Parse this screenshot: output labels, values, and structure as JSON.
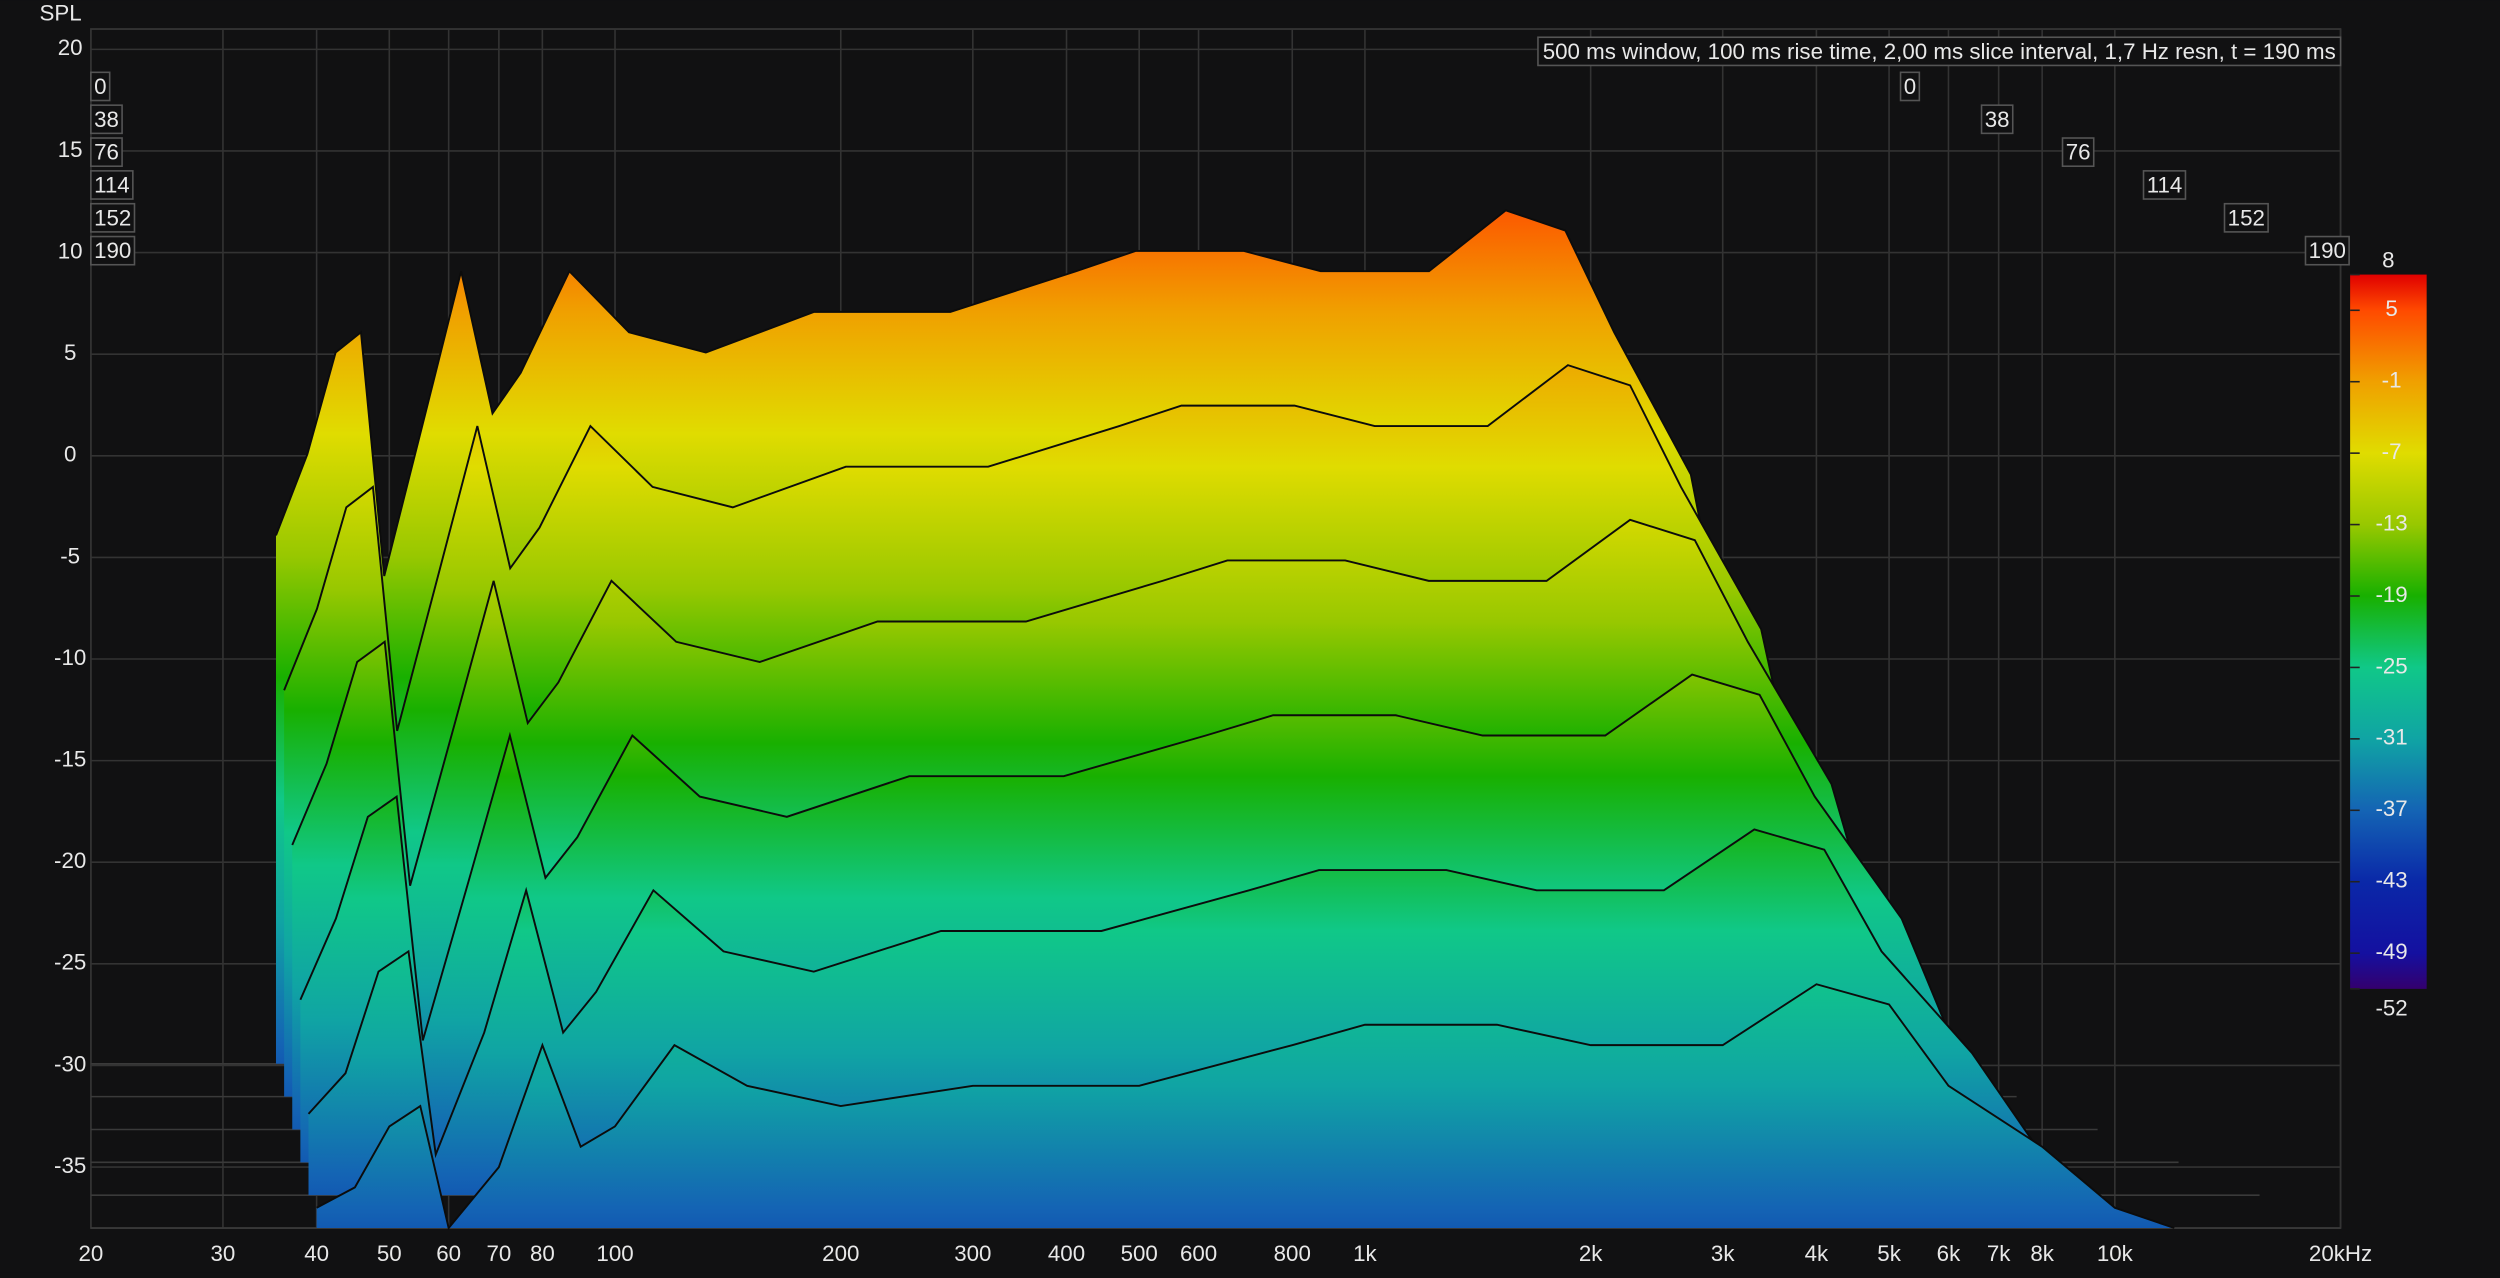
{
  "chart_data": {
    "type": "waterfall",
    "ylabel": "SPL",
    "annotation": "500 ms window, 100 ms rise time, 2,00 ms slice interval, 1,7 Hz resn, t = 190 ms",
    "xscale": "log",
    "xlim": [
      20,
      20000
    ],
    "xticks": [
      20,
      30,
      40,
      50,
      60,
      70,
      80,
      100,
      200,
      300,
      400,
      500,
      600,
      800,
      {
        "value": 1000,
        "label": "1k"
      },
      {
        "value": 2000,
        "label": "2k"
      },
      {
        "value": 3000,
        "label": "3k"
      },
      {
        "value": 4000,
        "label": "4k"
      },
      {
        "value": 5000,
        "label": "5k"
      },
      {
        "value": 6000,
        "label": "6k"
      },
      {
        "value": 7000,
        "label": "7k"
      },
      {
        "value": 8000,
        "label": "8k"
      },
      {
        "value": 10000,
        "label": "10k"
      },
      {
        "value": 20000,
        "label": "20kHz"
      }
    ],
    "ylim": [
      -38,
      21
    ],
    "yticks": [
      20,
      15,
      10,
      5,
      0,
      -5,
      -10,
      -15,
      -20,
      -25,
      -30,
      -35
    ],
    "zlim": [
      0,
      190
    ],
    "zticks": [
      0,
      38,
      76,
      114,
      152,
      190
    ],
    "grid": true,
    "x": [
      40,
      45,
      50,
      55,
      60,
      70,
      80,
      90,
      100,
      120,
      150,
      200,
      300,
      500,
      800,
      1000,
      1500,
      2000,
      3000,
      4000,
      5000,
      6000,
      8000,
      10000,
      12000
    ],
    "slices": [
      {
        "t": 0,
        "values": [
          -12,
          -8,
          -3,
          -2,
          -14,
          -6,
          1,
          -6,
          -4,
          1,
          -2,
          -3,
          -1,
          -1,
          1,
          2,
          2,
          1,
          1,
          4,
          3,
          -2,
          -9,
          -24,
          -36
        ]
      },
      {
        "t": 38,
        "values": [
          -18,
          -14,
          -9,
          -8,
          -20,
          -12,
          -5,
          -12,
          -10,
          -5,
          -8,
          -9,
          -7,
          -7,
          -5,
          -4,
          -4,
          -5,
          -5,
          -2,
          -3,
          -8,
          -15,
          -29,
          -37
        ]
      },
      {
        "t": 76,
        "values": [
          -24,
          -20,
          -15,
          -14,
          -26,
          -18,
          -11,
          -18,
          -16,
          -11,
          -14,
          -15,
          -13,
          -13,
          -11,
          -10,
          -10,
          -11,
          -11,
          -8,
          -9,
          -14,
          -21,
          -32,
          -38
        ]
      },
      {
        "t": 114,
        "values": [
          -30,
          -26,
          -21,
          -20,
          -32,
          -24,
          -17,
          -24,
          -22,
          -17,
          -20,
          -21,
          -19,
          -19,
          -17,
          -16,
          -16,
          -17,
          -17,
          -14,
          -15,
          -20,
          -26,
          -34,
          -38
        ]
      },
      {
        "t": 152,
        "values": [
          -34,
          -32,
          -27,
          -26,
          -36,
          -30,
          -23,
          -30,
          -28,
          -23,
          -26,
          -27,
          -25,
          -25,
          -23,
          -22,
          -22,
          -23,
          -23,
          -20,
          -21,
          -26,
          -31,
          -36,
          -38
        ]
      },
      {
        "t": 190,
        "values": [
          -37,
          -36,
          -33,
          -32,
          -38,
          -35,
          -29,
          -34,
          -33,
          -29,
          -31,
          -32,
          -31,
          -31,
          -29,
          -28,
          -28,
          -29,
          -29,
          -26,
          -27,
          -31,
          -34,
          -37,
          -38
        ]
      }
    ],
    "colorbar": {
      "ticks": [
        8,
        5,
        -1,
        -7,
        -13,
        -19,
        -25,
        -31,
        -37,
        -43,
        -49,
        -52
      ],
      "colors": [
        "#e00000",
        "#ff4a00",
        "#f0a000",
        "#e0dc00",
        "#98c800",
        "#18b000",
        "#10c888",
        "#10a4a4",
        "#1464b4",
        "#0a28a8",
        "#1410a0",
        "#34006e"
      ]
    }
  }
}
